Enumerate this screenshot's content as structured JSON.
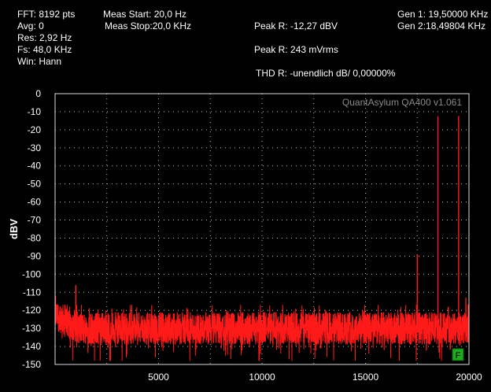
{
  "info": {
    "fft": "FFT: 8192 pts",
    "avg": "Avg: 0",
    "res": "Res: 2,92 Hz",
    "fs": "Fs: 48,0 KHz",
    "win": "Win: Hann",
    "meas_start": "Meas Start: 20,0 Hz",
    "meas_stop": "Meas Stop:20,0 KHz",
    "peak_r_dbv": "Peak R: -12,27 dBV",
    "peak_r_mv": "Peak R: 243 mVrms",
    "thd": "THD R: -unendlich dB/ 0,00000%",
    "gen1": "Gen 1: 19,50000 KHz",
    "gen2": "Gen 2:18,49804 KHz"
  },
  "watermark": "QuantAsylum QA400 v1.061",
  "marker_label": "F",
  "colors": {
    "trace": "#ff1a1a",
    "grid": "#bbbbbb",
    "marker": "#22aa22"
  },
  "chart_data": {
    "type": "line",
    "ylabel": "dBV",
    "xlabel": "",
    "xlim": [
      0,
      20000
    ],
    "ylim": [
      -150,
      0
    ],
    "x_ticks": [
      "5000",
      "10000",
      "15000",
      "20000"
    ],
    "y_ticks": [
      "0",
      "-10",
      "-20",
      "-30",
      "-40",
      "-50",
      "-60",
      "-70",
      "-80",
      "-90",
      "-100",
      "-110",
      "-120",
      "-130",
      "-140",
      "-150"
    ],
    "grid": true,
    "noise_floor": {
      "mean": -130,
      "range": [
        -148,
        -117
      ],
      "low_freq_level": -122
    },
    "series": [
      {
        "peaks": [
          {
            "x": 20,
            "y": -112
          },
          {
            "x": 1000,
            "y": -106
          },
          {
            "x": 17500,
            "y": -89
          },
          {
            "x": 18498,
            "y": -12.5
          },
          {
            "x": 19500,
            "y": -12.3
          },
          {
            "x": 19000,
            "y": -118
          },
          {
            "x": 19850,
            "y": -113
          }
        ]
      }
    ]
  }
}
